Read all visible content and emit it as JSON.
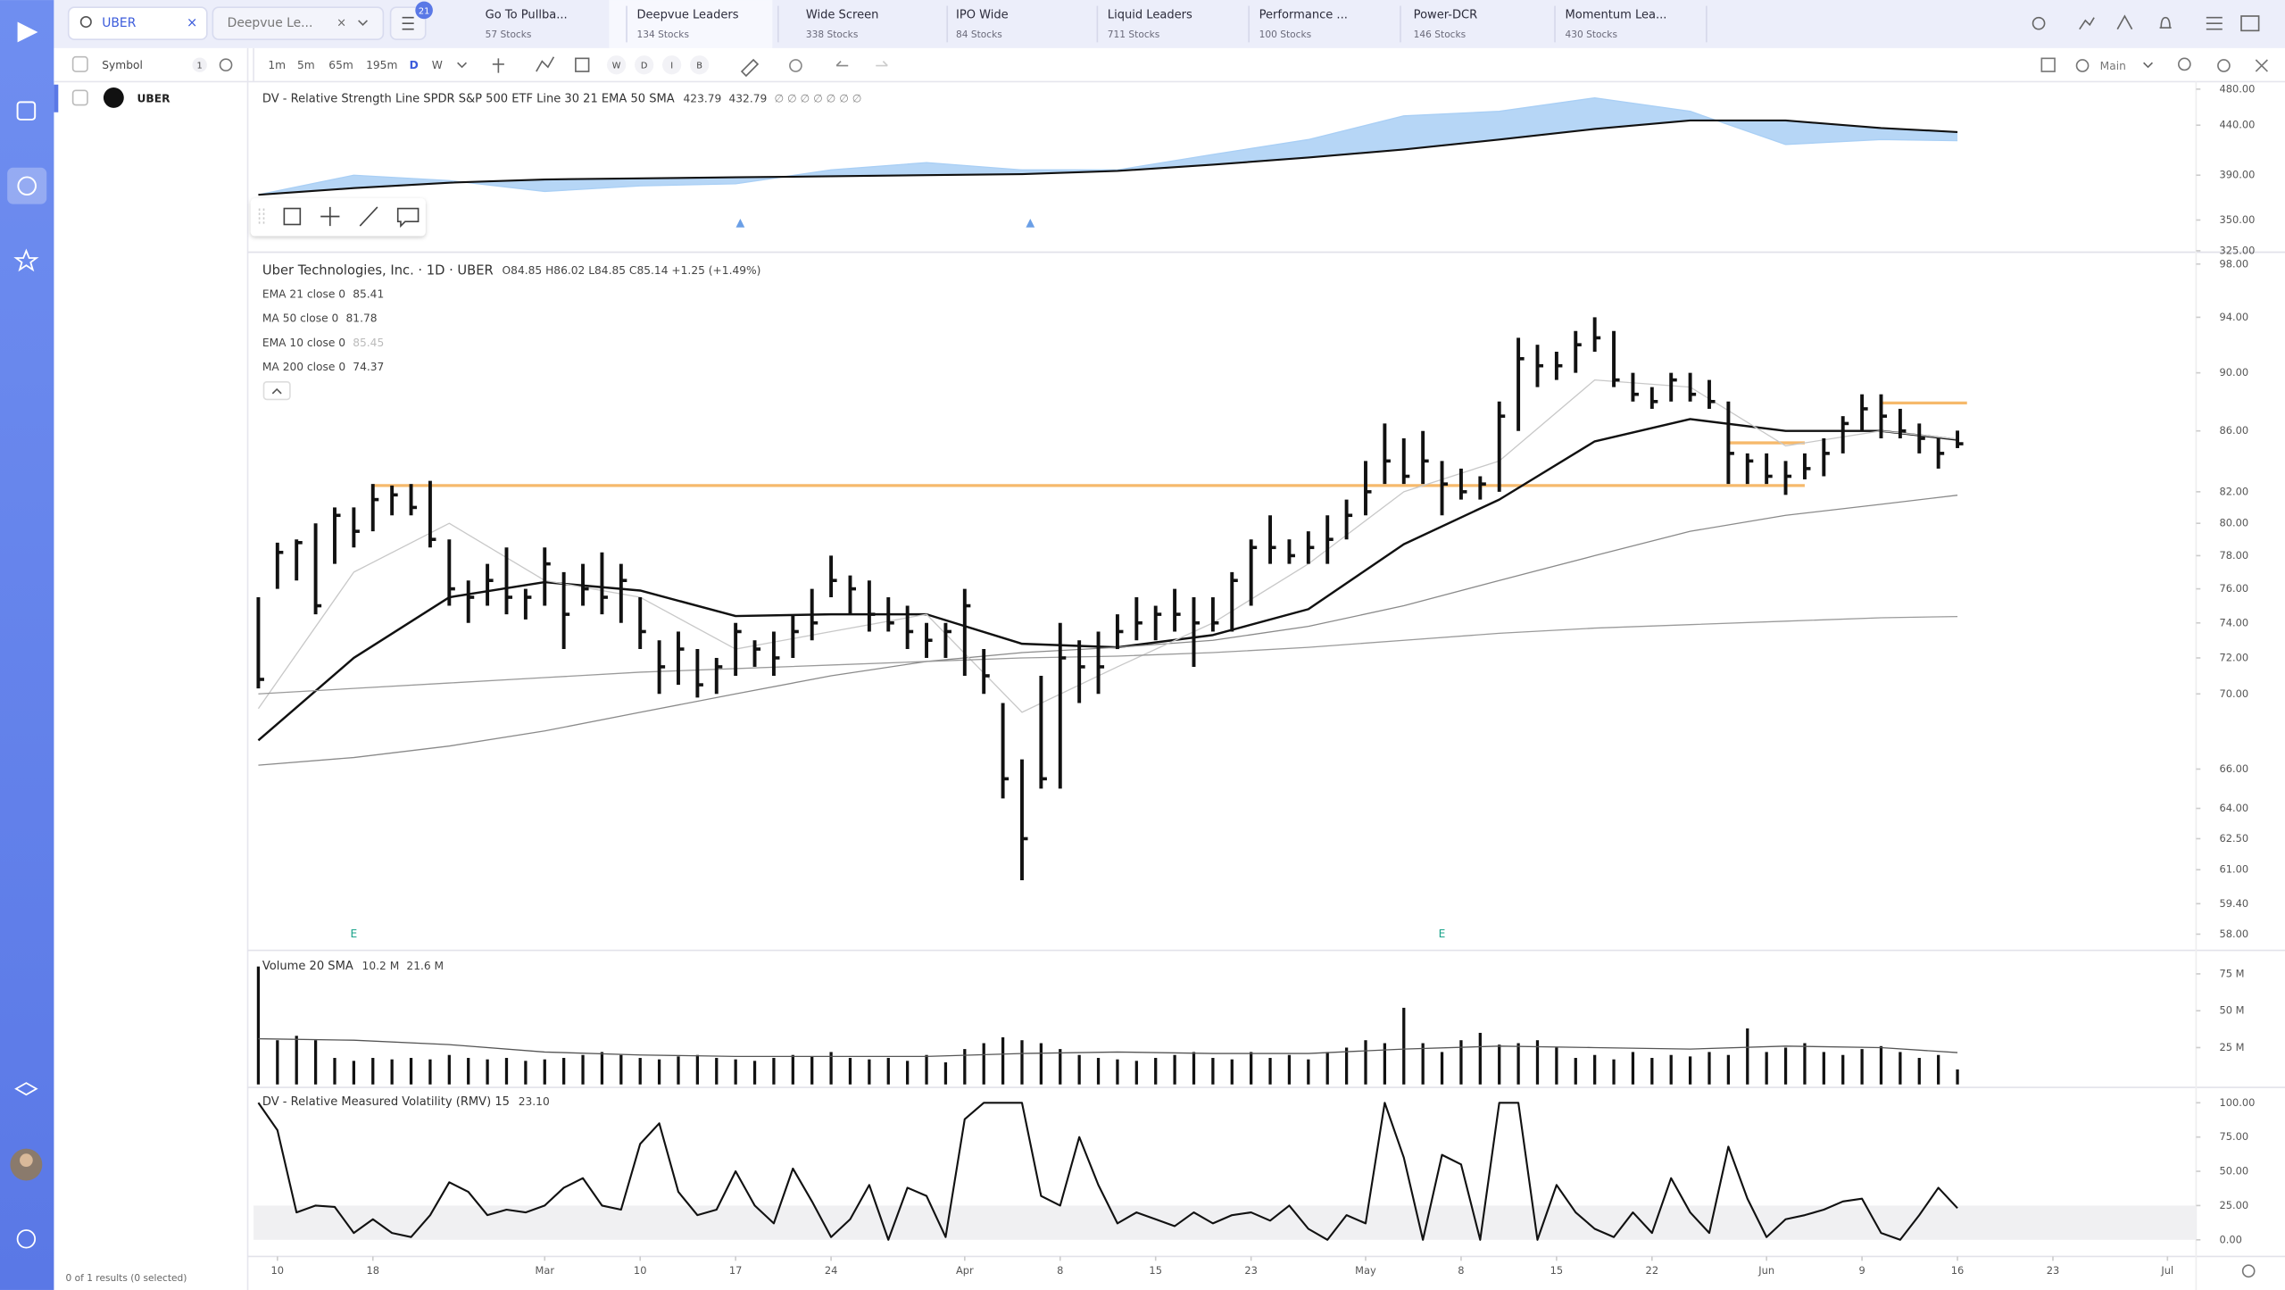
{
  "app": {
    "search": "UBER",
    "watchlist": "Deepvue Le...",
    "filter_count": "21",
    "tabs": [
      {
        "name": "Go To Pullba...",
        "count": "57 Stocks"
      },
      {
        "name": "Deepvue Leaders",
        "count": "134 Stocks"
      },
      {
        "name": "Wide Screen",
        "count": "338 Stocks"
      },
      {
        "name": "IPO Wide",
        "count": "84 Stocks"
      },
      {
        "name": "Liquid Leaders",
        "count": "711 Stocks"
      },
      {
        "name": "Performance ...",
        "count": "100 Stocks"
      },
      {
        "name": "Power-DCR",
        "count": "146 Stocks"
      },
      {
        "name": "Momentum Lea...",
        "count": "430 Stocks"
      }
    ],
    "timeframes": [
      "1m",
      "5m",
      "65m",
      "195m",
      "D",
      "W"
    ],
    "session_buttons": [
      "W",
      "D",
      "I",
      "B"
    ],
    "layout": "Main",
    "list_header": "Symbol",
    "list_count": "1",
    "symbols": [
      "UBER"
    ],
    "footer": "0 of 1 results (0 selected)"
  },
  "chart_data": [
    {
      "type": "line",
      "title": "DV - Relative Strength Line SPDR S&P 500 ETF Line 30 21 EMA 50 SMA",
      "flags": "∅ ∅ ∅ ∅ ∅ ∅ ∅",
      "log": true,
      "ylim": [
        325,
        487
      ],
      "yticks": [
        {
          "value": 480,
          "label": "480.00"
        },
        {
          "value": 440,
          "label": "440.00"
        },
        {
          "value": 390,
          "label": "390.00"
        },
        {
          "value": 350,
          "label": "350.00"
        },
        {
          "value": 325,
          "label": "325.00"
        }
      ],
      "fill_between": true,
      "series": [
        {
          "color": "#a9cff5",
          "last_label": "423.79",
          "x": [
            0,
            5,
            10,
            15,
            20,
            25,
            30,
            35,
            40,
            45,
            50,
            55,
            60,
            65,
            70,
            75,
            80,
            85,
            89
          ],
          "values": [
            372,
            390,
            385,
            375,
            380,
            382,
            395,
            402,
            395,
            395,
            410,
            425,
            450,
            455,
            470,
            455,
            420,
            425,
            423.79
          ]
        },
        {
          "color": "#111111",
          "last_label": "432.79",
          "x": [
            0,
            5,
            10,
            15,
            20,
            25,
            30,
            35,
            40,
            45,
            50,
            55,
            60,
            65,
            70,
            75,
            80,
            85,
            89
          ],
          "values": [
            372,
            378,
            383,
            386,
            387,
            388,
            389,
            390,
            391,
            394,
            400,
            407,
            415,
            425,
            436,
            445,
            445,
            437,
            432.79
          ]
        }
      ]
    },
    {
      "type": "ohlc",
      "title": "Uber Technologies, Inc. · 1D · UBER",
      "quote": "O84.85 H86.02 L84.85 C85.14 +1.25 (+1.49%)",
      "log": true,
      "ylim": [
        57.4,
        98.8
      ],
      "yticks": [
        {
          "value": 98,
          "label": "98.00"
        },
        {
          "value": 94,
          "label": "94.00"
        },
        {
          "value": 90,
          "label": "90.00"
        },
        {
          "value": 86,
          "label": "86.00"
        },
        {
          "value": 82,
          "label": "82.00"
        },
        {
          "value": 80,
          "label": "80.00"
        },
        {
          "value": 78,
          "label": "78.00"
        },
        {
          "value": 76,
          "label": "76.00"
        },
        {
          "value": 74,
          "label": "74.00"
        },
        {
          "value": 72,
          "label": "72.00"
        },
        {
          "value": 70,
          "label": "70.00"
        },
        {
          "value": 66,
          "label": "66.00"
        },
        {
          "value": 64,
          "label": "64.00"
        },
        {
          "value": 62.5,
          "label": "62.50"
        },
        {
          "value": 61,
          "label": "61.00"
        },
        {
          "value": 59.4,
          "label": "59.40"
        },
        {
          "value": 58,
          "label": "58.00"
        }
      ],
      "color": "#111111",
      "high": [
        75.5,
        78.8,
        79.0,
        80.0,
        81.0,
        81.0,
        82.5,
        82.4,
        82.5,
        82.7,
        79.0,
        76.5,
        77.5,
        78.5,
        76.0,
        78.5,
        77.0,
        77.5,
        78.2,
        77.5,
        75.5,
        73.0,
        73.5,
        72.5,
        72.0,
        74.0,
        73.0,
        73.5,
        74.5,
        76.0,
        78.0,
        76.8,
        76.5,
        75.5,
        75.0,
        74.0,
        74.0,
        76.0,
        72.5,
        69.5,
        66.5,
        71.0,
        74.0,
        73.0,
        73.5,
        74.5,
        75.5,
        75.0,
        76.0,
        75.5,
        75.5,
        77.0,
        79.0,
        80.5,
        79.0,
        79.5,
        80.5,
        81.5,
        84.0,
        86.5,
        85.5,
        86.0,
        84.0,
        83.5,
        83.0,
        88.0,
        92.5,
        92.0,
        91.5,
        93.0,
        94.0,
        93.0,
        90.0,
        89.0,
        90.0,
        90.0,
        89.5,
        88.0,
        84.5,
        84.5,
        84.0,
        84.5,
        85.5,
        87.0,
        88.5,
        88.5,
        87.5,
        86.5,
        85.5,
        86.02
      ],
      "low": [
        70.3,
        76.0,
        76.5,
        74.5,
        77.5,
        78.5,
        79.5,
        80.5,
        80.5,
        78.5,
        75.0,
        74.0,
        75.0,
        74.5,
        74.2,
        75.0,
        72.5,
        75.0,
        74.5,
        74.0,
        72.5,
        70.0,
        70.5,
        69.8,
        70.0,
        71.0,
        71.5,
        71.0,
        72.0,
        73.0,
        75.5,
        74.5,
        73.5,
        73.5,
        72.5,
        72.0,
        72.0,
        71.0,
        70.0,
        64.5,
        60.5,
        65.0,
        65.0,
        69.5,
        70.0,
        72.5,
        73.0,
        73.0,
        73.5,
        71.5,
        73.5,
        73.5,
        75.0,
        77.5,
        77.5,
        77.5,
        77.5,
        79.0,
        80.5,
        82.5,
        82.5,
        82.5,
        80.5,
        81.5,
        81.5,
        82.0,
        86.0,
        89.0,
        89.5,
        90.0,
        91.5,
        89.0,
        88.0,
        87.5,
        88.0,
        88.0,
        87.5,
        82.5,
        82.5,
        82.5,
        81.8,
        82.8,
        83.0,
        84.5,
        86.0,
        85.5,
        85.5,
        84.5,
        83.5,
        84.85
      ],
      "close": [
        70.8,
        78.2,
        78.8,
        75.0,
        80.5,
        79.5,
        81.5,
        81.8,
        81.0,
        79.0,
        76.0,
        75.5,
        76.5,
        75.5,
        75.5,
        77.5,
        74.5,
        76.0,
        75.5,
        76.5,
        73.5,
        71.5,
        72.5,
        70.5,
        71.5,
        73.5,
        72.5,
        72.0,
        73.5,
        74.0,
        76.5,
        76.0,
        74.5,
        74.0,
        73.5,
        73.0,
        73.5,
        75.0,
        71.0,
        65.5,
        62.5,
        65.5,
        72.0,
        71.5,
        71.5,
        73.5,
        74.0,
        74.5,
        74.5,
        74.0,
        74.0,
        76.5,
        78.5,
        78.5,
        78.0,
        78.5,
        79.0,
        80.5,
        82.0,
        84.0,
        83.0,
        84.0,
        82.5,
        82.0,
        82.5,
        87.0,
        91.0,
        90.5,
        90.5,
        92.0,
        92.5,
        89.5,
        88.5,
        88.0,
        89.5,
        88.5,
        88.0,
        84.5,
        84.0,
        83.0,
        83.0,
        83.5,
        84.5,
        86.5,
        87.5,
        87.0,
        86.0,
        85.5,
        84.5,
        85.14
      ],
      "series": [
        {
          "name": "EMA 21 close 0",
          "last_label": "85.41",
          "color": "#111111",
          "width": 1.5,
          "x": [
            0,
            5,
            10,
            15,
            20,
            25,
            30,
            35,
            40,
            45,
            50,
            55,
            60,
            65,
            70,
            75,
            80,
            85,
            89
          ],
          "values": [
            67.5,
            72.0,
            75.5,
            76.4,
            75.9,
            74.4,
            74.5,
            74.5,
            72.8,
            72.6,
            73.3,
            74.8,
            78.7,
            81.5,
            85.3,
            86.8,
            86.0,
            86.0,
            85.41
          ]
        },
        {
          "name": "MA 50 close 0",
          "last_label": "81.78",
          "color": "#8a8a8a",
          "width": 0.8,
          "x": [
            0,
            5,
            10,
            15,
            20,
            25,
            30,
            35,
            40,
            45,
            50,
            55,
            60,
            65,
            70,
            75,
            80,
            85,
            89
          ],
          "values": [
            66.2,
            66.6,
            67.2,
            68.0,
            69.0,
            70.0,
            71.0,
            71.8,
            72.3,
            72.6,
            73.0,
            73.8,
            75.0,
            76.5,
            78.0,
            79.5,
            80.5,
            81.2,
            81.78
          ]
        },
        {
          "name": "EMA 10 close 0",
          "last_label": "85.45",
          "color": "#c8c8c8",
          "width": 0.8,
          "x": [
            0,
            5,
            10,
            15,
            20,
            25,
            30,
            35,
            40,
            45,
            50,
            55,
            60,
            65,
            70,
            75,
            80,
            85,
            89
          ],
          "values": [
            69.2,
            77.0,
            80.0,
            76.5,
            75.5,
            72.5,
            73.5,
            74.5,
            69.0,
            71.5,
            74.0,
            77.5,
            82.0,
            84.0,
            89.5,
            89.0,
            85.0,
            86.0,
            85.45
          ]
        },
        {
          "name": "MA 200 close 0",
          "last_label": "74.37",
          "color": "#9a9a9a",
          "width": 0.8,
          "x": [
            0,
            5,
            10,
            15,
            20,
            25,
            30,
            35,
            40,
            45,
            50,
            55,
            60,
            65,
            70,
            75,
            80,
            85,
            89
          ],
          "values": [
            70.0,
            70.3,
            70.6,
            70.9,
            71.2,
            71.4,
            71.6,
            71.8,
            72.0,
            72.1,
            72.3,
            72.6,
            73.0,
            73.4,
            73.7,
            73.9,
            74.1,
            74.3,
            74.37
          ]
        }
      ],
      "levels": [
        {
          "price": 82.4,
          "from": 6,
          "to": 81,
          "color": "#f6b96b"
        },
        {
          "price": 85.2,
          "from": 77,
          "to": 81,
          "color": "#f6b96b"
        },
        {
          "price": 87.9,
          "from": 85,
          "to": 89.5,
          "color": "#f6b96b"
        }
      ],
      "earnings": [
        {
          "x": 5,
          "label": "E"
        },
        {
          "x": 62,
          "label": "E"
        }
      ]
    },
    {
      "type": "bar",
      "title": "Volume 20 SMA",
      "ylim": [
        0,
        88
      ],
      "yticks": [
        {
          "value": 75,
          "label": "75 M"
        },
        {
          "value": 50,
          "label": "50 M"
        },
        {
          "value": 25,
          "label": "25 M"
        }
      ],
      "color": "#111111",
      "last_label": "10.2 M",
      "values": [
        80,
        30,
        33,
        30,
        18,
        16,
        18,
        17,
        18,
        17,
        20,
        18,
        17,
        18,
        16,
        17,
        18,
        20,
        22,
        20,
        18,
        17,
        19,
        20,
        18,
        17,
        16,
        18,
        20,
        19,
        22,
        18,
        17,
        18,
        16,
        20,
        15,
        24,
        28,
        32,
        30,
        28,
        24,
        20,
        18,
        17,
        16,
        18,
        20,
        22,
        18,
        17,
        22,
        18,
        20,
        17,
        22,
        25,
        30,
        28,
        52,
        28,
        22,
        30,
        35,
        27,
        28,
        30,
        25,
        18,
        20,
        17,
        22,
        18,
        20,
        19,
        22,
        20,
        38,
        22,
        25,
        28,
        22,
        20,
        24,
        26,
        22,
        18,
        20,
        10.2
      ],
      "series": [
        {
          "color": "#555555",
          "last_label": "21.6 M",
          "x": [
            0,
            5,
            10,
            15,
            20,
            25,
            30,
            35,
            40,
            45,
            50,
            55,
            60,
            65,
            70,
            75,
            80,
            85,
            89
          ],
          "values": [
            31,
            30,
            27,
            22,
            20,
            19,
            19,
            19,
            21,
            22,
            21,
            21,
            24,
            26,
            25,
            24,
            26,
            25,
            21.6
          ]
        }
      ]
    },
    {
      "type": "line",
      "title": "DV - Relative Measured Volatility (RMV) 15",
      "ylim": [
        -10,
        107
      ],
      "yticks": [
        {
          "value": 100,
          "label": "100.00"
        },
        {
          "value": 75,
          "label": "75.00"
        },
        {
          "value": 50,
          "label": "50.00"
        },
        {
          "value": 25,
          "label": "25.00"
        },
        {
          "value": 0,
          "label": "0.00"
        }
      ],
      "shaded_band": [
        0,
        25
      ],
      "series": [
        {
          "color": "#111111",
          "last_label": "23.10",
          "values": [
            100,
            80,
            20,
            25,
            24,
            5,
            15,
            5,
            2,
            18,
            42,
            35,
            18,
            22,
            20,
            25,
            38,
            45,
            25,
            22,
            70,
            85,
            35,
            18,
            22,
            50,
            25,
            12,
            52,
            28,
            2,
            15,
            40,
            0,
            38,
            32,
            2,
            88,
            100,
            100,
            100,
            32,
            25,
            75,
            40,
            12,
            20,
            15,
            10,
            20,
            12,
            18,
            20,
            14,
            25,
            8,
            0,
            18,
            12,
            100,
            60,
            0,
            62,
            55,
            0,
            100,
            100,
            0,
            40,
            20,
            8,
            2,
            20,
            5,
            45,
            20,
            5,
            68,
            30,
            2,
            15,
            18,
            22,
            28,
            30,
            5,
            0,
            18,
            38,
            23.1
          ]
        }
      ],
      "xlim": [
        -0.25,
        101.5
      ],
      "xticks": [
        {
          "value": 1,
          "label": "10"
        },
        {
          "value": 6,
          "label": "18"
        },
        {
          "value": 15,
          "label": "Mar"
        },
        {
          "value": 20,
          "label": "10"
        },
        {
          "value": 25,
          "label": "17"
        },
        {
          "value": 30,
          "label": "24"
        },
        {
          "value": 37,
          "label": "Apr"
        },
        {
          "value": 42,
          "label": "8"
        },
        {
          "value": 47,
          "label": "15"
        },
        {
          "value": 52,
          "label": "23"
        },
        {
          "value": 58,
          "label": "May"
        },
        {
          "value": 63,
          "label": "8"
        },
        {
          "value": 68,
          "label": "15"
        },
        {
          "value": 73,
          "label": "22"
        },
        {
          "value": 79,
          "label": "Jun"
        },
        {
          "value": 84,
          "label": "9"
        },
        {
          "value": 89,
          "label": "16"
        },
        {
          "value": 94,
          "label": "23"
        },
        {
          "value": 100,
          "label": "Jul"
        }
      ]
    }
  ]
}
